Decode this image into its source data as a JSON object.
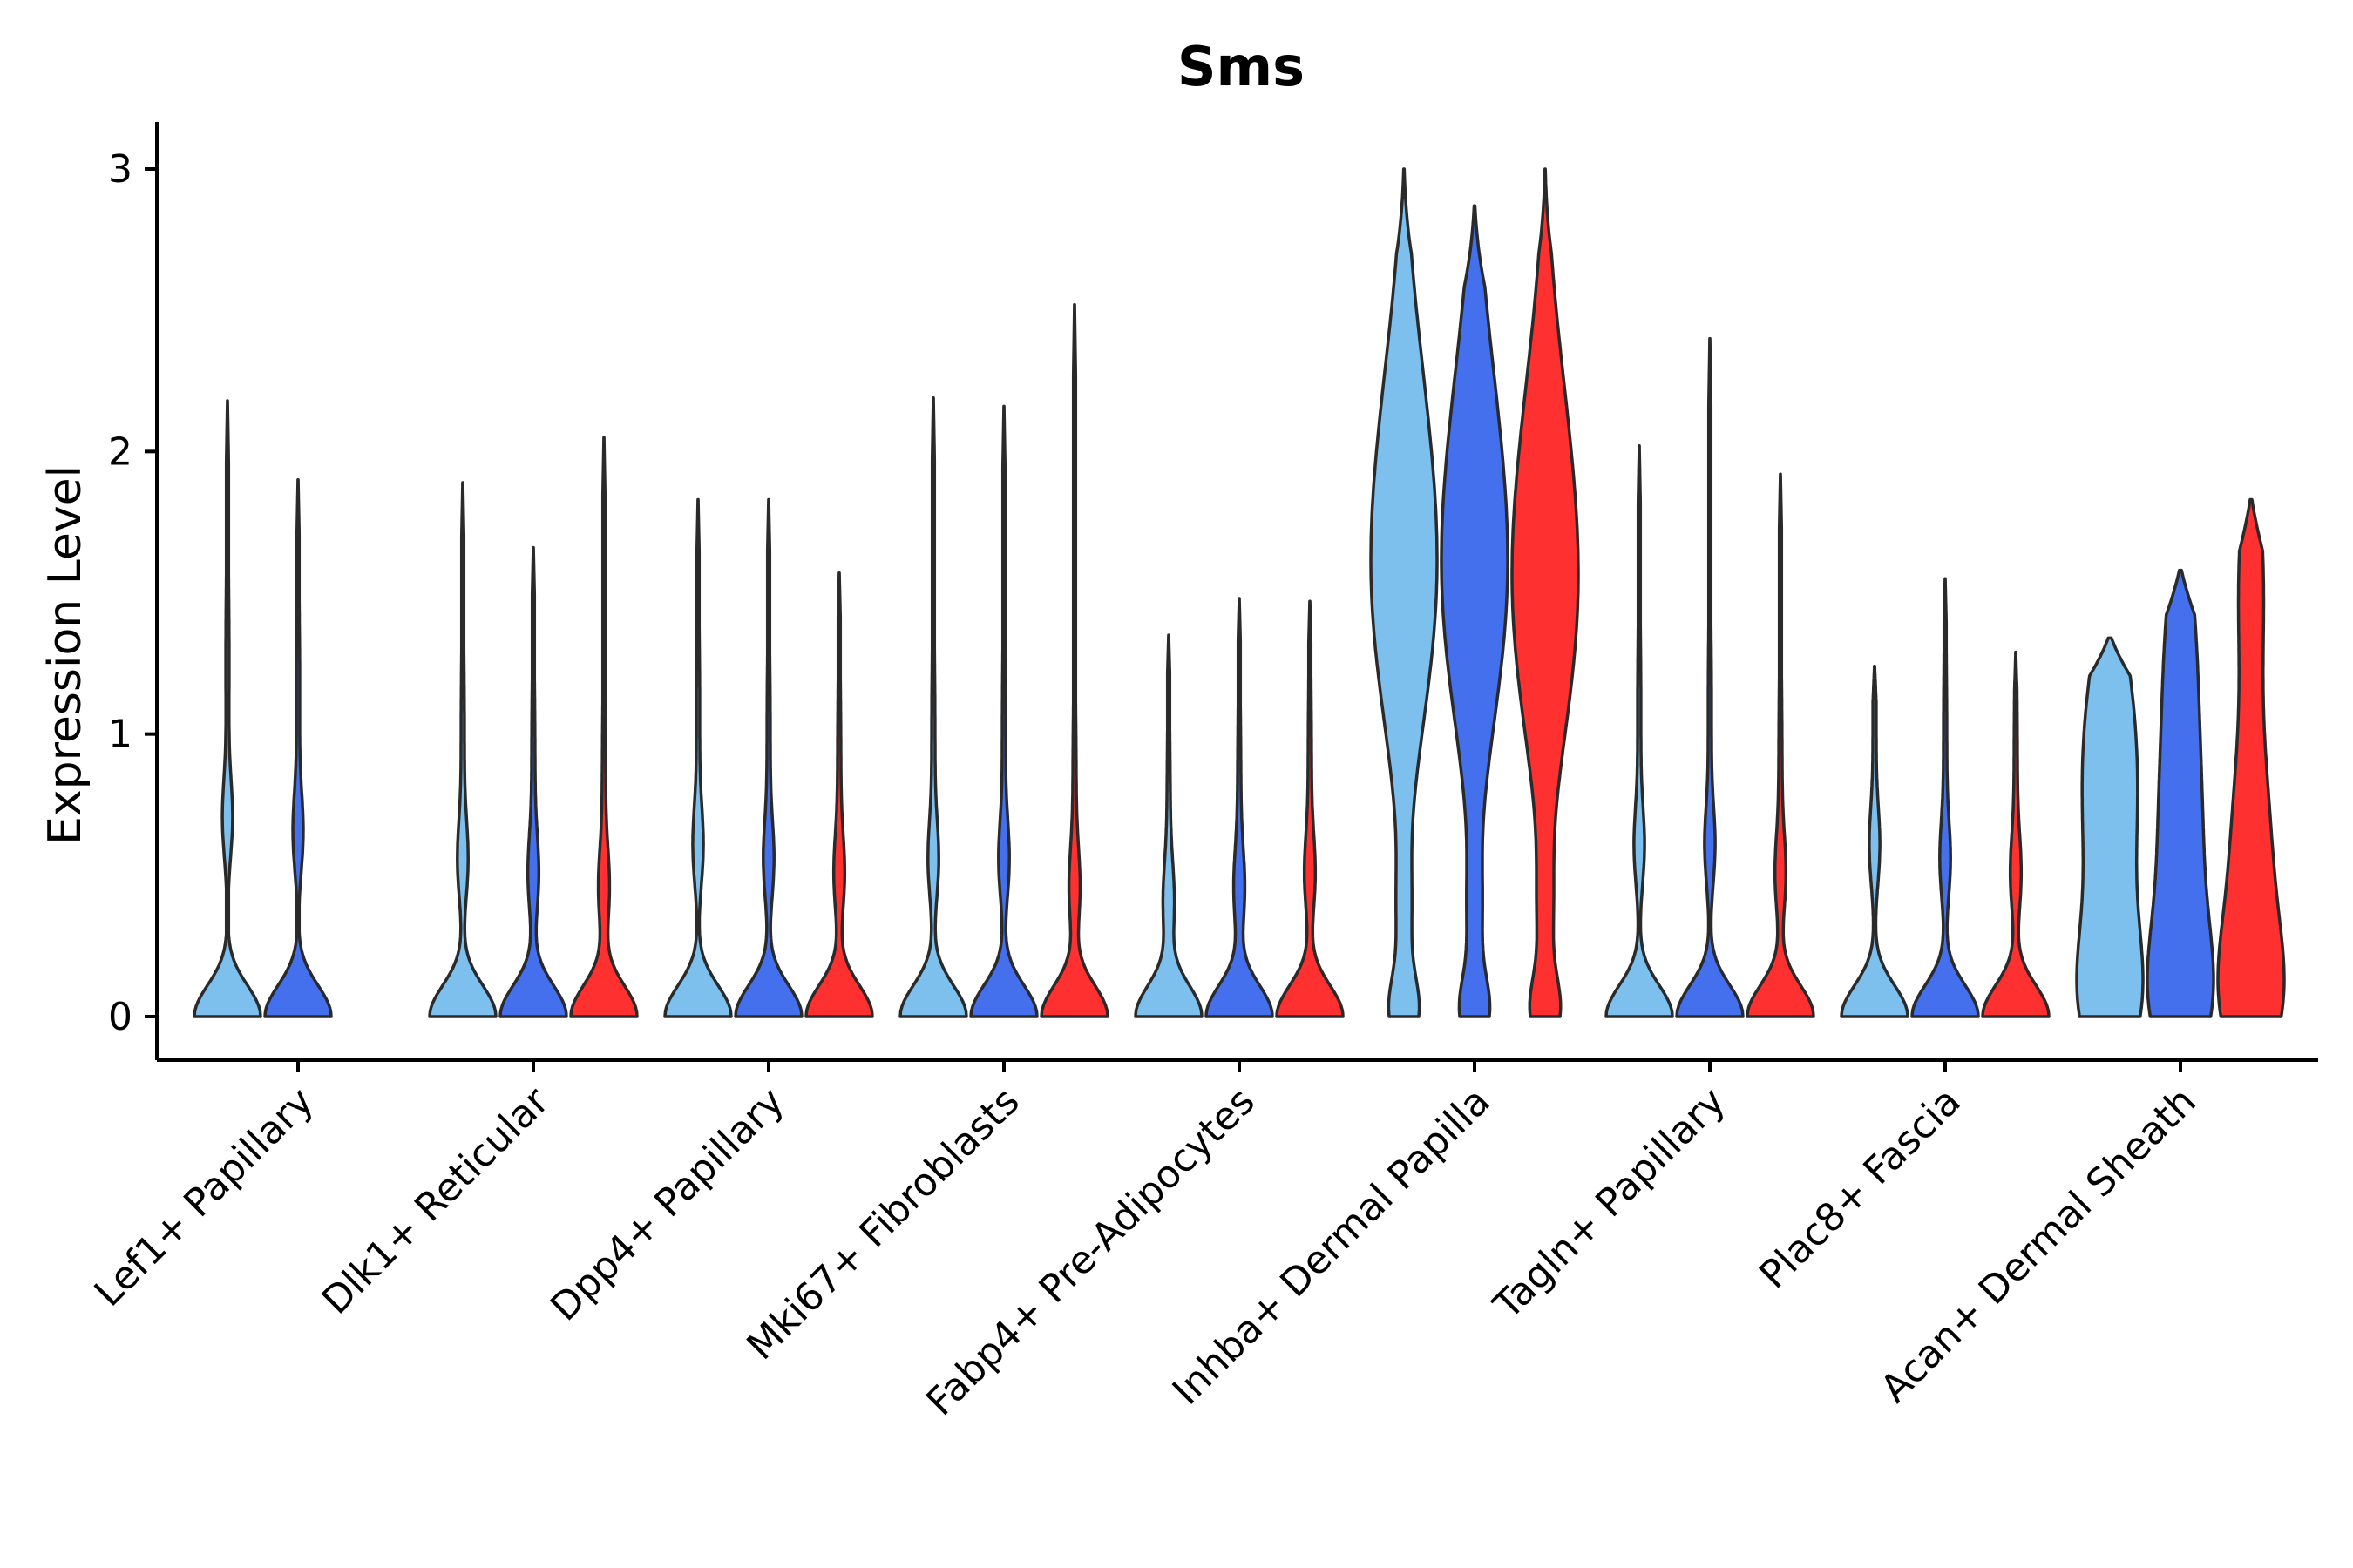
{
  "chart_data": {
    "type": "violin",
    "title": "Sms",
    "xlabel": "",
    "ylabel": "Expression Level",
    "ylim": [
      -0.15,
      3.15
    ],
    "yticks": [
      0,
      1,
      2,
      3
    ],
    "categories": [
      "Lef1+ Papillary",
      "Dlk1+ Reticular",
      "Dpp4+ Papillary",
      "Mki67+ Fibroblasts",
      "Fabp4+ Pre-Adipocytes",
      "Inhba+ Dermal Papilla",
      "Tagln+ Papillary",
      "Plac8+ Fascia",
      "Acan+ Dermal Sheath"
    ],
    "groups": [
      {
        "name": "group-1",
        "color": "#7DC0EE"
      },
      {
        "name": "group-2",
        "color": "#4470EE"
      },
      {
        "name": "group-3",
        "color": "#FF3030"
      }
    ],
    "violins": [
      {
        "category": 0,
        "group": 0,
        "max": 2.18,
        "shape": "zero_heavy",
        "mode": 0.7
      },
      {
        "category": 0,
        "group": 1,
        "max": 1.9,
        "shape": "zero_heavy",
        "mode": 0.65
      },
      {
        "category": 1,
        "group": 0,
        "max": 1.89,
        "shape": "zero_heavy",
        "mode": 0.55
      },
      {
        "category": 1,
        "group": 1,
        "max": 1.66,
        "shape": "zero_heavy",
        "mode": 0.5
      },
      {
        "category": 1,
        "group": 2,
        "max": 2.05,
        "shape": "zero_heavy",
        "mode": 0.45
      },
      {
        "category": 2,
        "group": 0,
        "max": 1.83,
        "shape": "zero_heavy",
        "mode": 0.6
      },
      {
        "category": 2,
        "group": 1,
        "max": 1.83,
        "shape": "zero_heavy",
        "mode": 0.55
      },
      {
        "category": 2,
        "group": 2,
        "max": 1.57,
        "shape": "zero_heavy",
        "mode": 0.5
      },
      {
        "category": 3,
        "group": 0,
        "max": 2.19,
        "shape": "zero_heavy",
        "mode": 0.55
      },
      {
        "category": 3,
        "group": 1,
        "max": 2.16,
        "shape": "zero_heavy",
        "mode": 0.55
      },
      {
        "category": 3,
        "group": 2,
        "max": 2.52,
        "shape": "zero_heavy",
        "mode": 0.45
      },
      {
        "category": 4,
        "group": 0,
        "max": 1.35,
        "shape": "zero_heavy",
        "mode": 0.4
      },
      {
        "category": 4,
        "group": 1,
        "max": 1.48,
        "shape": "zero_heavy",
        "mode": 0.45
      },
      {
        "category": 4,
        "group": 2,
        "max": 1.47,
        "shape": "zero_heavy",
        "mode": 0.5
      },
      {
        "category": 5,
        "group": 0,
        "max": 3.0,
        "shape": "bimodal_high",
        "mode": 1.5
      },
      {
        "category": 5,
        "group": 1,
        "max": 2.87,
        "shape": "bimodal_high",
        "mode": 1.5
      },
      {
        "category": 5,
        "group": 2,
        "max": 3.0,
        "shape": "bimodal_high",
        "mode": 1.45
      },
      {
        "category": 6,
        "group": 0,
        "max": 2.02,
        "shape": "zero_heavy",
        "mode": 0.6
      },
      {
        "category": 6,
        "group": 1,
        "max": 2.4,
        "shape": "zero_heavy",
        "mode": 0.6
      },
      {
        "category": 6,
        "group": 2,
        "max": 1.92,
        "shape": "zero_heavy",
        "mode": 0.5
      },
      {
        "category": 7,
        "group": 0,
        "max": 1.24,
        "shape": "zero_heavy",
        "mode": 0.6
      },
      {
        "category": 7,
        "group": 1,
        "max": 1.55,
        "shape": "zero_heavy",
        "mode": 0.55
      },
      {
        "category": 7,
        "group": 2,
        "max": 1.29,
        "shape": "zero_heavy",
        "mode": 0.5
      },
      {
        "category": 8,
        "group": 0,
        "max": 1.34,
        "shape": "wide",
        "mode": 0.65
      },
      {
        "category": 8,
        "group": 1,
        "max": 1.58,
        "shape": "wide",
        "mode": 0.6
      },
      {
        "category": 8,
        "group": 2,
        "max": 1.83,
        "shape": "wide",
        "mode": 0.55
      }
    ]
  }
}
